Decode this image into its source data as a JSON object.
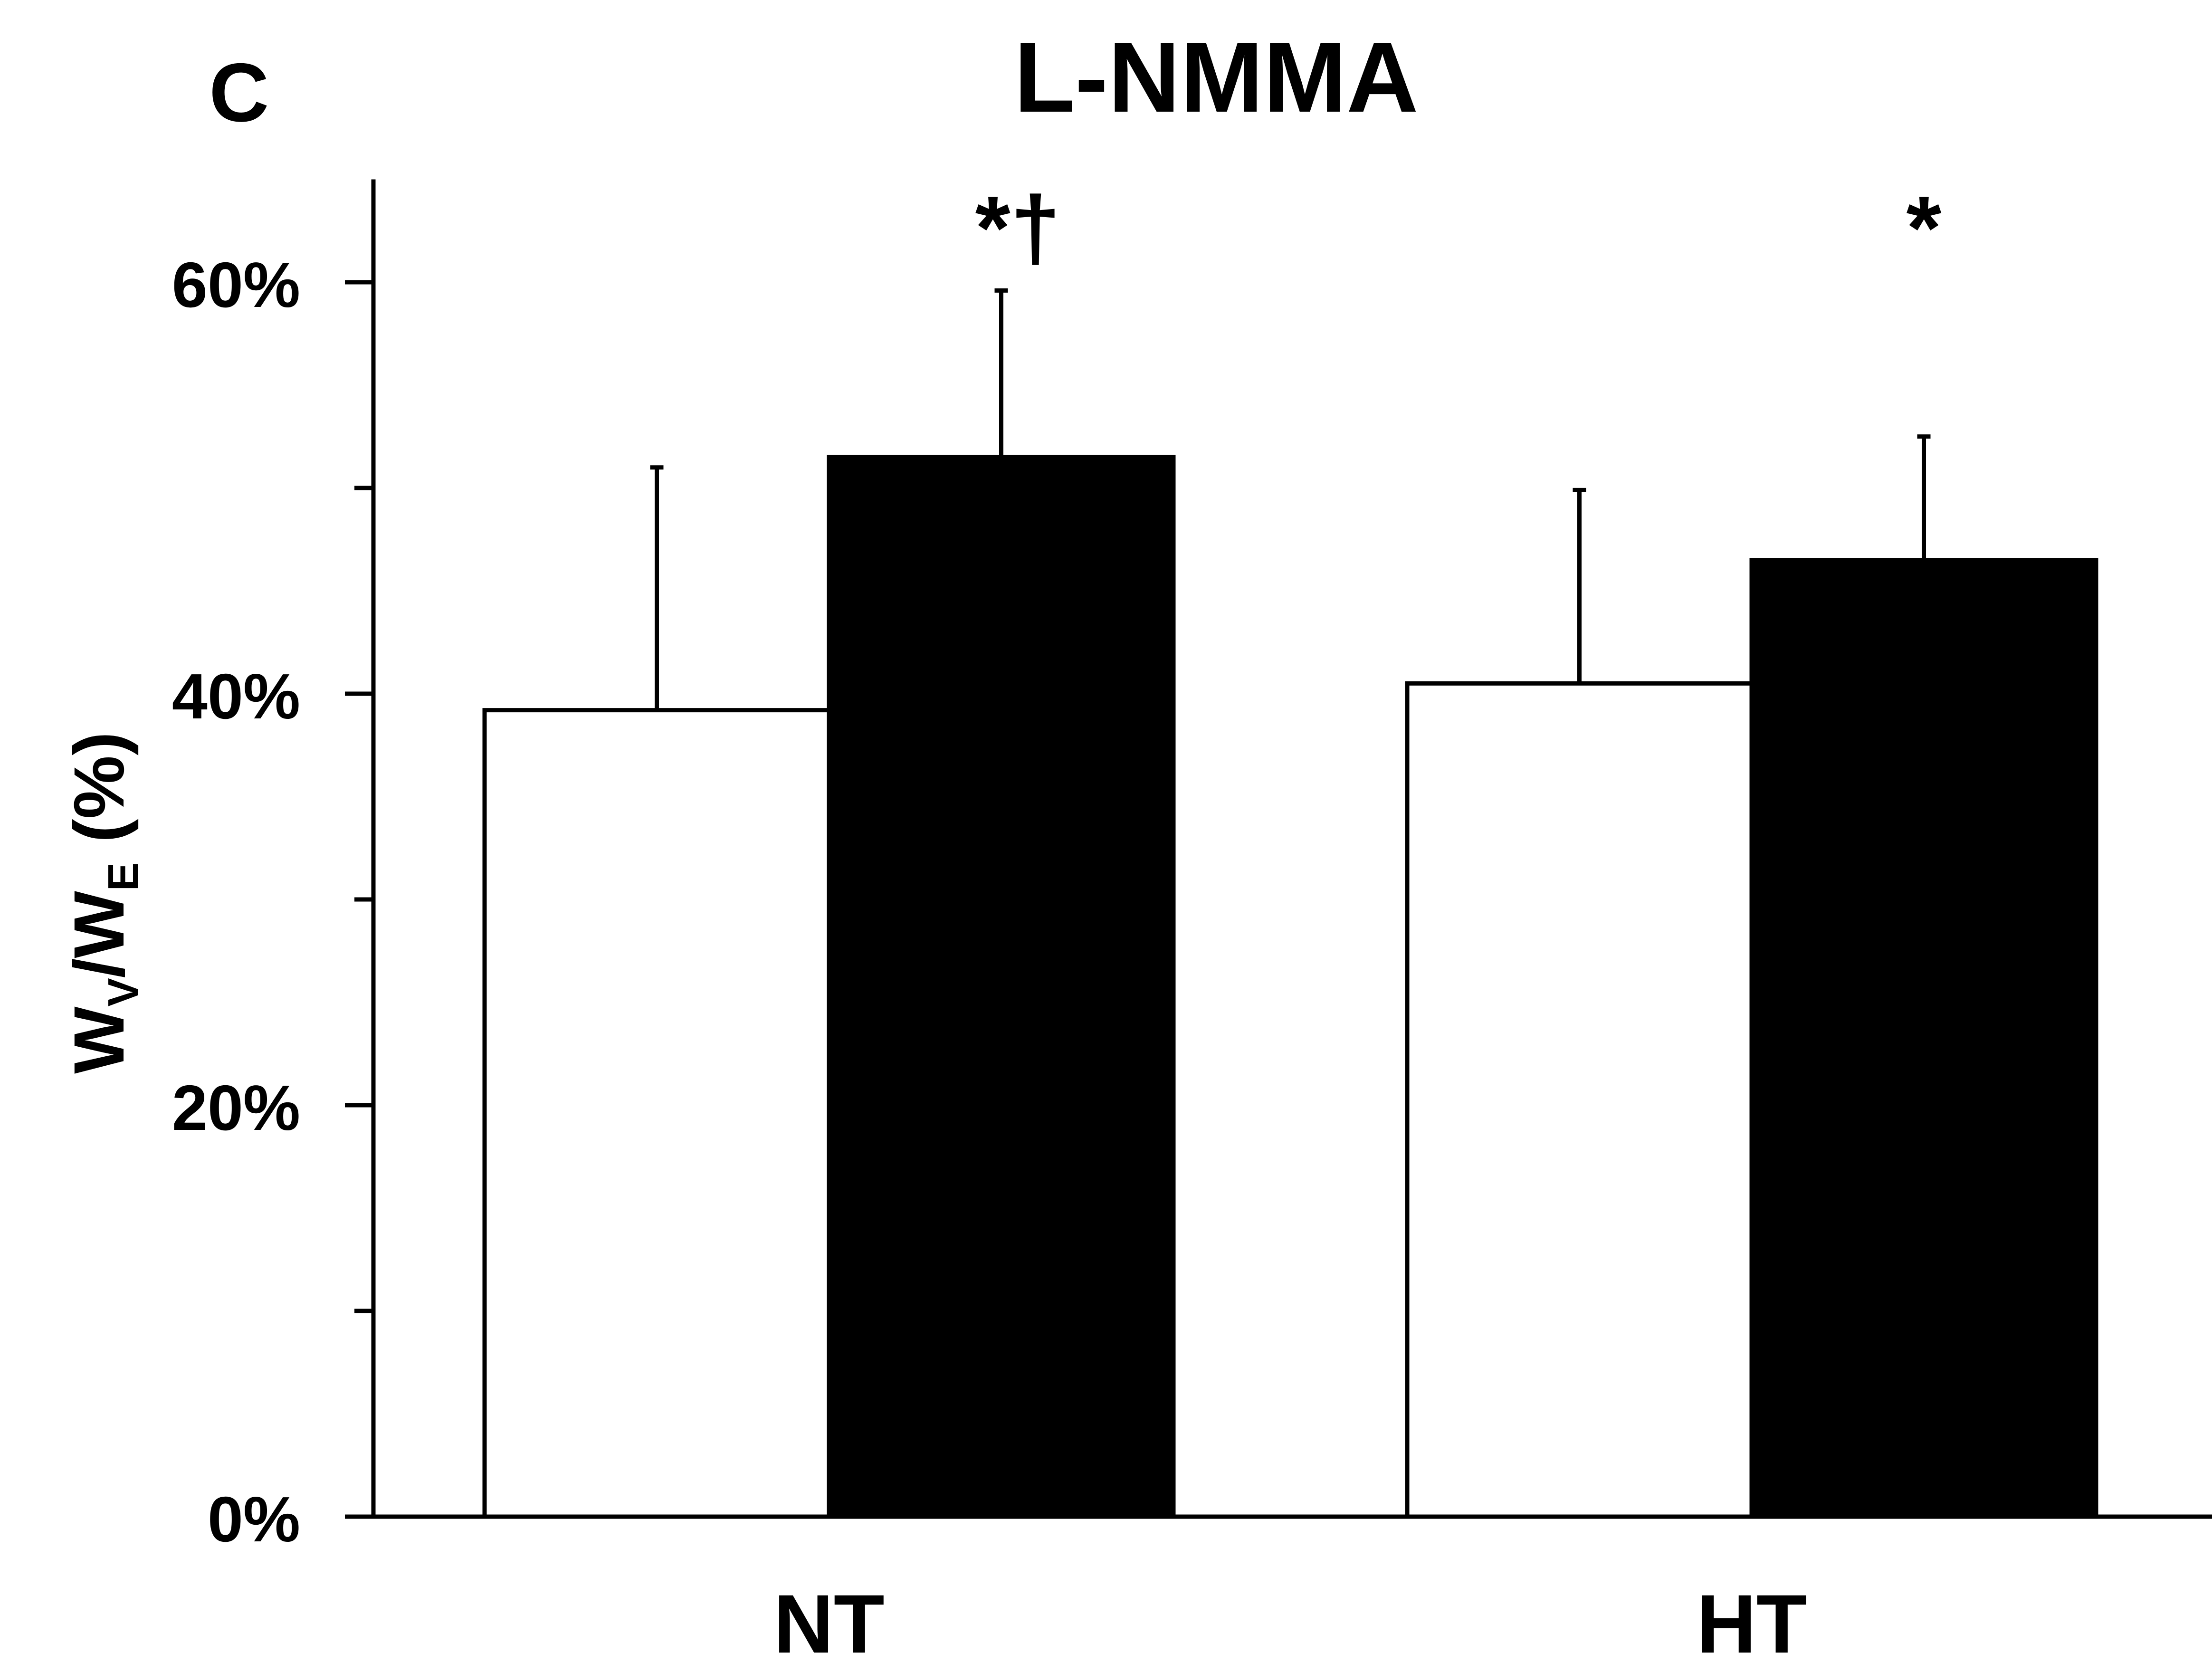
{
  "panel_letter": "C",
  "chart_data": {
    "type": "bar",
    "title": "L-NMMA",
    "ylabel_main": "W",
    "ylabel_sub1": "V",
    "ylabel_slash": "/W",
    "ylabel_sub2": "E",
    "ylabel_unit": " (%)",
    "categories": [
      "NT",
      "HT"
    ],
    "ylim": [
      0,
      0.65
    ],
    "ytick_values": [
      0,
      0.2,
      0.4,
      0.6
    ],
    "ytick_labels": [
      "0%",
      "20%",
      "40%",
      "60%"
    ],
    "yminor_values": [
      0.1,
      0.3,
      0.5
    ],
    "series": [
      {
        "color": "#ffffff",
        "values": [
          0.392,
          0.405
        ],
        "errors": [
          0.118,
          0.094
        ]
      },
      {
        "color": "#000000",
        "values": [
          0.515,
          0.465
        ],
        "errors": [
          0.081,
          0.06
        ]
      }
    ],
    "annotations": [
      "*†",
      "*"
    ]
  }
}
